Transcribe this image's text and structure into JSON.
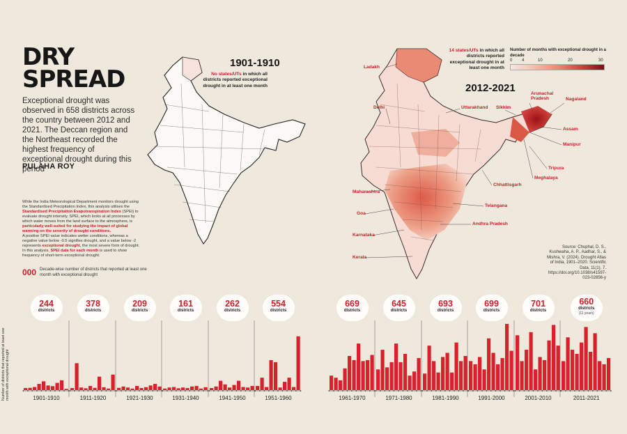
{
  "headline": {
    "line1": "DRY",
    "line2": "SPREAD"
  },
  "intro": "Exceptional drought was observed in 658 districts across the country between 2012 and 2021. The Deccan region and the Northeast recorded the highest frequency of exceptional drought during this period",
  "byline": "PULAHA ROY",
  "methodology": {
    "p1a": "While the India Meteorological Department monitors drought using the Standardised Precipitation Index, this analysis utilises the ",
    "p1_red": "Standardised Precipitation Evapotranspiration Index",
    "p1b": " (SPEI) to evaluate drought intensity. SPEI, which looks at all processes by which water moves from the land surface to the atmosphere, is ",
    "p1_red2": "particularly well-suited for studying the impact of global warming on the severity of drought conditions.",
    "p2a": "A positive SPEI value indicates wetter conditions, whereas a negative value below -0.5 signifies drought, and a value below -2 represents ",
    "p2_red": "exceptional drought",
    "p2b": ", the most severe form of drought. In this analysis, ",
    "p2_red2": "SPEI data for each month",
    "p2c": " is used to show frequency of short-term exceptional drought."
  },
  "legend_note": {
    "number": "000",
    "text": "Decade-wise number of districts that reported at least one month with exceptional drought"
  },
  "map_left": {
    "period": "1901-1910",
    "note_red": "No states/UTs",
    "note_rest": " in which all districts reported exceptional drought in at least one month"
  },
  "map_right": {
    "period": "2012-2021",
    "note_red": "14 states/UTs",
    "note_rest": " in which all districts reported exceptional drought in at least one month",
    "labels": [
      "Ladakh",
      "Delhi",
      "Uttarakhand",
      "Sikkim",
      "Arunachal Pradesh",
      "Nagaland",
      "Assam",
      "Manipur",
      "Tripura",
      "Meghalaya",
      "Chhattisgarh",
      "Maharashtra",
      "Telangana",
      "Goa",
      "Andhra Pradesh",
      "Karnataka",
      "Kerala"
    ]
  },
  "color_scale": {
    "title": "Number of months with exceptional drought in a decade",
    "ticks": [
      "0",
      "4",
      "10",
      "20",
      "30"
    ]
  },
  "source": "Source: Chuphal, D. S., Kushwaha, A. P., Aadhar, S., & Mishra, V. (2024). Drought Atlas of India, 1901–2020. Scientific Data, 11(1), 7. https://doi.org/10.1038/s41597-023-02856-y",
  "chart_data": {
    "type": "bar",
    "title": "Number of districts that reported at least one month with exceptional drought",
    "ylabel": "Number of districts that reported at least one month with exceptional drought",
    "ylim": [
      0,
      700
    ],
    "decades": [
      {
        "label": "1901-1910",
        "districts": 244,
        "unit": "districts",
        "sub": "",
        "values": [
          20,
          22,
          30,
          60,
          85,
          45,
          38,
          70,
          95,
          12
        ]
      },
      {
        "label": "1911-1920",
        "districts": 378,
        "unit": "districts",
        "sub": "",
        "values": [
          20,
          260,
          25,
          18,
          40,
          22,
          130,
          28,
          15,
          150
        ]
      },
      {
        "label": "1921-1930",
        "districts": 209,
        "unit": "districts",
        "sub": "",
        "values": [
          22,
          35,
          25,
          15,
          40,
          20,
          28,
          45,
          60,
          35
        ]
      },
      {
        "label": "1931-1940",
        "districts": 161,
        "unit": "districts",
        "sub": "",
        "values": [
          15,
          25,
          30,
          18,
          25,
          20,
          35,
          40,
          15,
          28
        ]
      },
      {
        "label": "1941-1950",
        "districts": 262,
        "unit": "districts",
        "sub": "",
        "values": [
          20,
          35,
          90,
          55,
          25,
          50,
          90,
          30,
          25,
          40
        ]
      },
      {
        "label": "1951-1960",
        "districts": 554,
        "unit": "districts",
        "sub": "",
        "values": [
          40,
          120,
          30,
          290,
          270,
          25,
          80,
          120,
          30,
          520
        ]
      },
      {
        "label": "1961-1970",
        "districts": 669,
        "unit": "districts",
        "sub": "",
        "values": [
          140,
          120,
          95,
          210,
          330,
          290,
          450,
          280,
          290,
          340
        ]
      },
      {
        "label": "1971-1980",
        "districts": 645,
        "unit": "districts",
        "sub": "",
        "values": [
          200,
          390,
          220,
          270,
          450,
          270,
          350,
          140,
          180,
          310
        ]
      },
      {
        "label": "1981-1990",
        "districts": 693,
        "unit": "districts",
        "sub": "",
        "values": [
          160,
          430,
          280,
          170,
          320,
          360,
          170,
          460,
          280,
          330
        ]
      },
      {
        "label": "1991-2000",
        "districts": 699,
        "unit": "districts",
        "sub": "",
        "values": [
          280,
          250,
          320,
          200,
          500,
          360,
          250,
          310,
          640,
          380
        ]
      },
      {
        "label": "2001-2010",
        "districts": 701,
        "unit": "districts",
        "sub": "",
        "values": [
          530,
          280,
          390,
          560,
          200,
          320,
          290,
          480,
          630,
          430
        ]
      },
      {
        "label": "2011-2021",
        "districts": 660,
        "unit": "districts",
        "sub": "(11 years)",
        "values": [
          280,
          510,
          390,
          350,
          460,
          610,
          370,
          550,
          280,
          250,
          310
        ]
      }
    ]
  }
}
